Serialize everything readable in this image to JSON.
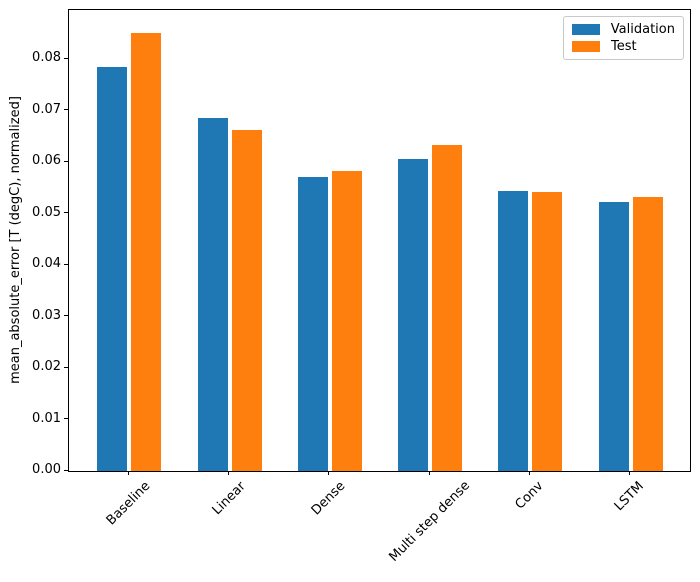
{
  "chart_data": {
    "type": "bar",
    "title": "",
    "xlabel": "",
    "ylabel": "mean_absolute_error [T (degC), normalized]",
    "categories": [
      "Baseline",
      "Linear",
      "Dense",
      "Multi step dense",
      "Conv",
      "LSTM"
    ],
    "series": [
      {
        "name": "Validation",
        "color": "#1f77b4",
        "values": [
          0.0785,
          0.0686,
          0.0572,
          0.0606,
          0.0544,
          0.0523
        ]
      },
      {
        "name": "Test",
        "color": "#ff7f0e",
        "values": [
          0.0852,
          0.0663,
          0.0583,
          0.0633,
          0.0542,
          0.0533
        ]
      }
    ],
    "ylim": [
      0,
      0.0896
    ],
    "xlim": [
      -0.602,
      5.602
    ],
    "ytick_values": [
      0.0,
      0.01,
      0.02,
      0.03,
      0.04,
      0.05,
      0.06,
      0.07,
      0.08
    ],
    "ytick_labels": [
      "0.00",
      "0.01",
      "0.02",
      "0.03",
      "0.04",
      "0.05",
      "0.06",
      "0.07",
      "0.08"
    ],
    "xtick_rotation_deg": 45,
    "bar_width": 0.3,
    "bar_offsets": [
      -0.17,
      0.17
    ],
    "grid": false,
    "legend": {
      "position": "upper-right",
      "entries": [
        "Validation",
        "Test"
      ]
    },
    "colors": {
      "axis": "#000000",
      "text": "#000000",
      "legend_border": "#cccccc",
      "background": "#ffffff"
    }
  }
}
